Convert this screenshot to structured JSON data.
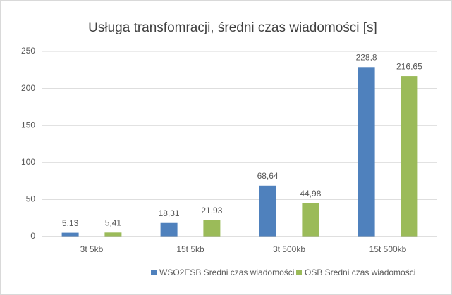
{
  "chart_data": {
    "type": "bar",
    "title": "Usługa transfomracji, średni czas wiadomości [s]",
    "categories": [
      "3t 5kb",
      "15t 5kb",
      "3t 500kb",
      "15t 500kb"
    ],
    "series": [
      {
        "name": "WSO2ESB Sredni czas wiadomości",
        "color": "#4f81bd",
        "values": [
          5.13,
          18.31,
          68.64,
          228.8
        ],
        "value_labels": [
          "5,13",
          "18,31",
          "68,64",
          "228,8"
        ]
      },
      {
        "name": "OSB Sredni czas wiadomości",
        "color": "#9bbb59",
        "values": [
          5.41,
          21.93,
          44.98,
          216.65
        ],
        "value_labels": [
          "5,41",
          "21,93",
          "44,98",
          "216,65"
        ]
      }
    ],
    "ylim": [
      0,
      250
    ],
    "yticks": [
      0,
      50,
      100,
      150,
      200,
      250
    ],
    "grid": true,
    "legend": "bottom"
  }
}
